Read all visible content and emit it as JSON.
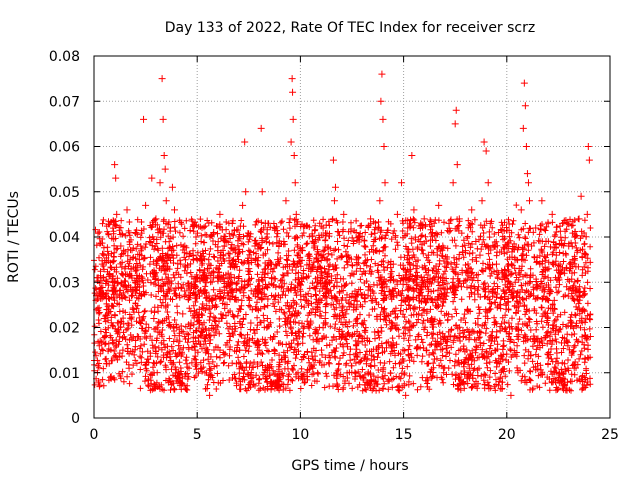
{
  "chart_data": {
    "type": "scatter",
    "title": "Day 133 of 2022, Rate Of TEC Index for receiver scrz",
    "xlabel": "GPS time / hours",
    "ylabel": "ROTI / TECUs",
    "xlim": [
      0,
      25
    ],
    "ylim": [
      0,
      0.08
    ],
    "xticks": [
      0,
      5,
      10,
      15,
      20,
      25
    ],
    "xtick_labels": [
      "0",
      "5",
      "10",
      "15",
      "20",
      "25"
    ],
    "yticks": [
      0,
      0.01,
      0.02,
      0.03,
      0.04,
      0.05,
      0.06,
      0.07,
      0.08
    ],
    "ytick_labels": [
      "0",
      "0.01",
      "0.02",
      "0.03",
      "0.04",
      "0.05",
      "0.06",
      "0.07",
      "0.08"
    ],
    "grid": true,
    "marker": "+",
    "color": "#ff0000",
    "series": [
      {
        "name": "ROTI",
        "points": [
          [
            0.1,
            0.026
          ],
          [
            0.2,
            0.031
          ],
          [
            0.3,
            0.017
          ],
          [
            0.4,
            0.034
          ],
          [
            0.5,
            0.022
          ],
          [
            0.6,
            0.012
          ],
          [
            0.7,
            0.036
          ],
          [
            0.8,
            0.009
          ],
          [
            0.9,
            0.028
          ],
          [
            1.0,
            0.056
          ],
          [
            1.05,
            0.053
          ],
          [
            1.1,
            0.045
          ],
          [
            1.2,
            0.021
          ],
          [
            1.3,
            0.038
          ],
          [
            1.4,
            0.015
          ],
          [
            1.5,
            0.029
          ],
          [
            1.6,
            0.046
          ],
          [
            1.7,
            0.011
          ],
          [
            1.8,
            0.033
          ],
          [
            1.9,
            0.024
          ],
          [
            2.0,
            0.041
          ],
          [
            2.1,
            0.018
          ],
          [
            2.2,
            0.035
          ],
          [
            2.3,
            0.027
          ],
          [
            2.4,
            0.066
          ],
          [
            2.5,
            0.047
          ],
          [
            2.6,
            0.013
          ],
          [
            2.7,
            0.039
          ],
          [
            2.8,
            0.053
          ],
          [
            2.9,
            0.022
          ],
          [
            3.0,
            0.044
          ],
          [
            3.1,
            0.019
          ],
          [
            3.2,
            0.052
          ],
          [
            3.3,
            0.075
          ],
          [
            3.35,
            0.066
          ],
          [
            3.4,
            0.058
          ],
          [
            3.45,
            0.055
          ],
          [
            3.5,
            0.048
          ],
          [
            3.6,
            0.031
          ],
          [
            3.7,
            0.042
          ],
          [
            3.8,
            0.051
          ],
          [
            3.9,
            0.046
          ],
          [
            4.0,
            0.027
          ],
          [
            4.1,
            0.016
          ],
          [
            4.2,
            0.034
          ],
          [
            4.3,
            0.023
          ],
          [
            4.4,
            0.038
          ],
          [
            4.5,
            0.012
          ],
          [
            4.6,
            0.029
          ],
          [
            4.7,
            0.021
          ],
          [
            4.8,
            0.036
          ],
          [
            4.9,
            0.015
          ],
          [
            5.0,
            0.031
          ],
          [
            5.1,
            0.024
          ],
          [
            5.2,
            0.011
          ],
          [
            5.3,
            0.028
          ],
          [
            5.4,
            0.017
          ],
          [
            5.5,
            0.033
          ],
          [
            5.6,
            0.005
          ],
          [
            5.7,
            0.026
          ],
          [
            5.8,
            0.041
          ],
          [
            5.9,
            0.019
          ],
          [
            6.0,
            0.037
          ],
          [
            6.1,
            0.045
          ],
          [
            6.2,
            0.022
          ],
          [
            6.3,
            0.014
          ],
          [
            6.4,
            0.039
          ],
          [
            6.5,
            0.027
          ],
          [
            6.6,
            0.018
          ],
          [
            6.7,
            0.043
          ],
          [
            6.8,
            0.031
          ],
          [
            6.9,
            0.012
          ],
          [
            7.0,
            0.035
          ],
          [
            7.1,
            0.024
          ],
          [
            7.2,
            0.047
          ],
          [
            7.3,
            0.061
          ],
          [
            7.35,
            0.05
          ],
          [
            7.4,
            0.016
          ],
          [
            7.5,
            0.033
          ],
          [
            7.6,
            0.021
          ],
          [
            7.7,
            0.009
          ],
          [
            7.8,
            0.038
          ],
          [
            7.9,
            0.028
          ],
          [
            8.0,
            0.015
          ],
          [
            8.1,
            0.064
          ],
          [
            8.15,
            0.05
          ],
          [
            8.2,
            0.036
          ],
          [
            8.3,
            0.043
          ],
          [
            8.4,
            0.022
          ],
          [
            8.5,
            0.011
          ],
          [
            8.6,
            0.031
          ],
          [
            8.7,
            0.018
          ],
          [
            8.8,
            0.027
          ],
          [
            8.9,
            0.035
          ],
          [
            9.0,
            0.024
          ],
          [
            9.1,
            0.013
          ],
          [
            9.2,
            0.039
          ],
          [
            9.3,
            0.048
          ],
          [
            9.4,
            0.032
          ],
          [
            9.5,
            0.044
          ],
          [
            9.55,
            0.061
          ],
          [
            9.6,
            0.075
          ],
          [
            9.62,
            0.072
          ],
          [
            9.65,
            0.066
          ],
          [
            9.7,
            0.058
          ],
          [
            9.75,
            0.052
          ],
          [
            9.8,
            0.045
          ],
          [
            9.85,
            0.036
          ],
          [
            9.9,
            0.019
          ],
          [
            10.0,
            0.028
          ],
          [
            10.1,
            0.037
          ],
          [
            10.2,
            0.014
          ],
          [
            10.3,
            0.026
          ],
          [
            10.4,
            0.033
          ],
          [
            10.5,
            0.021
          ],
          [
            10.6,
            0.011
          ],
          [
            10.7,
            0.038
          ],
          [
            10.8,
            0.024
          ],
          [
            10.9,
            0.017
          ],
          [
            11.0,
            0.031
          ],
          [
            11.1,
            0.042
          ],
          [
            11.2,
            0.022
          ],
          [
            11.3,
            0.035
          ],
          [
            11.4,
            0.012
          ],
          [
            11.5,
            0.027
          ],
          [
            11.6,
            0.057
          ],
          [
            11.65,
            0.048
          ],
          [
            11.7,
            0.051
          ],
          [
            11.8,
            0.039
          ],
          [
            11.9,
            0.018
          ],
          [
            12.0,
            0.029
          ],
          [
            12.1,
            0.045
          ],
          [
            12.2,
            0.023
          ],
          [
            12.3,
            0.036
          ],
          [
            12.4,
            0.014
          ],
          [
            12.5,
            0.032
          ],
          [
            12.6,
            0.025
          ],
          [
            12.7,
            0.041
          ],
          [
            12.8,
            0.017
          ],
          [
            12.9,
            0.033
          ],
          [
            13.0,
            0.021
          ],
          [
            13.1,
            0.038
          ],
          [
            13.2,
            0.012
          ],
          [
            13.3,
            0.029
          ],
          [
            13.4,
            0.044
          ],
          [
            13.5,
            0.026
          ],
          [
            13.6,
            0.019
          ],
          [
            13.7,
            0.037
          ],
          [
            13.8,
            0.031
          ],
          [
            13.85,
            0.048
          ],
          [
            13.9,
            0.07
          ],
          [
            13.95,
            0.076
          ],
          [
            14.0,
            0.066
          ],
          [
            14.05,
            0.06
          ],
          [
            14.1,
            0.052
          ],
          [
            14.2,
            0.041
          ],
          [
            14.3,
            0.028
          ],
          [
            14.4,
            0.016
          ],
          [
            14.5,
            0.034
          ],
          [
            14.6,
            0.023
          ],
          [
            14.7,
            0.045
          ],
          [
            14.8,
            0.012
          ],
          [
            14.9,
            0.052
          ],
          [
            15.0,
            0.031
          ],
          [
            15.1,
            0.005
          ],
          [
            15.2,
            0.042
          ],
          [
            15.3,
            0.021
          ],
          [
            15.4,
            0.058
          ],
          [
            15.5,
            0.046
          ],
          [
            15.6,
            0.033
          ],
          [
            15.7,
            0.018
          ],
          [
            15.8,
            0.039
          ],
          [
            15.9,
            0.027
          ],
          [
            16.0,
            0.044
          ],
          [
            16.1,
            0.015
          ],
          [
            16.2,
            0.036
          ],
          [
            16.3,
            0.024
          ],
          [
            16.4,
            0.041
          ],
          [
            16.5,
            0.013
          ],
          [
            16.6,
            0.032
          ],
          [
            16.7,
            0.047
          ],
          [
            16.8,
            0.021
          ],
          [
            16.9,
            0.038
          ],
          [
            17.0,
            0.027
          ],
          [
            17.1,
            0.016
          ],
          [
            17.2,
            0.043
          ],
          [
            17.3,
            0.034
          ],
          [
            17.4,
            0.052
          ],
          [
            17.5,
            0.065
          ],
          [
            17.55,
            0.068
          ],
          [
            17.6,
            0.056
          ],
          [
            17.7,
            0.044
          ],
          [
            17.8,
            0.029
          ],
          [
            17.9,
            0.018
          ],
          [
            18.0,
            0.037
          ],
          [
            18.1,
            0.024
          ],
          [
            18.2,
            0.011
          ],
          [
            18.3,
            0.046
          ],
          [
            18.4,
            0.031
          ],
          [
            18.5,
            0.039
          ],
          [
            18.6,
            0.022
          ],
          [
            18.7,
            0.036
          ],
          [
            18.8,
            0.048
          ],
          [
            18.9,
            0.061
          ],
          [
            19.0,
            0.059
          ],
          [
            19.1,
            0.052
          ],
          [
            19.2,
            0.043
          ],
          [
            19.3,
            0.028
          ],
          [
            19.4,
            0.017
          ],
          [
            19.5,
            0.034
          ],
          [
            19.6,
            0.041
          ],
          [
            19.7,
            0.025
          ],
          [
            19.8,
            0.013
          ],
          [
            19.9,
            0.031
          ],
          [
            20.0,
            0.038
          ],
          [
            20.1,
            0.021
          ],
          [
            20.2,
            0.005
          ],
          [
            20.3,
            0.027
          ],
          [
            20.4,
            0.035
          ],
          [
            20.5,
            0.018
          ],
          [
            20.6,
            0.033
          ],
          [
            20.7,
            0.046
          ],
          [
            20.8,
            0.064
          ],
          [
            20.85,
            0.074
          ],
          [
            20.9,
            0.069
          ],
          [
            20.95,
            0.06
          ],
          [
            21.0,
            0.054
          ],
          [
            21.05,
            0.052
          ],
          [
            21.1,
            0.048
          ],
          [
            21.2,
            0.038
          ],
          [
            21.3,
            0.027
          ],
          [
            21.4,
            0.042
          ],
          [
            21.5,
            0.016
          ],
          [
            21.6,
            0.034
          ],
          [
            21.7,
            0.048
          ],
          [
            21.8,
            0.023
          ],
          [
            21.9,
            0.039
          ],
          [
            22.0,
            0.031
          ],
          [
            22.1,
            0.014
          ],
          [
            22.2,
            0.045
          ],
          [
            22.3,
            0.026
          ],
          [
            22.4,
            0.036
          ],
          [
            22.5,
            0.019
          ],
          [
            22.6,
            0.032
          ],
          [
            22.7,
            0.043
          ],
          [
            22.8,
            0.012
          ],
          [
            22.9,
            0.029
          ],
          [
            23.0,
            0.038
          ],
          [
            23.1,
            0.021
          ],
          [
            23.2,
            0.035
          ],
          [
            23.3,
            0.016
          ],
          [
            23.4,
            0.027
          ],
          [
            23.5,
            0.044
          ],
          [
            23.6,
            0.049
          ],
          [
            23.7,
            0.024
          ],
          [
            23.8,
            0.013
          ],
          [
            23.9,
            0.045
          ],
          [
            23.95,
            0.06
          ],
          [
            24.0,
            0.057
          ],
          [
            24.05,
            0.018
          ]
        ]
      }
    ]
  }
}
